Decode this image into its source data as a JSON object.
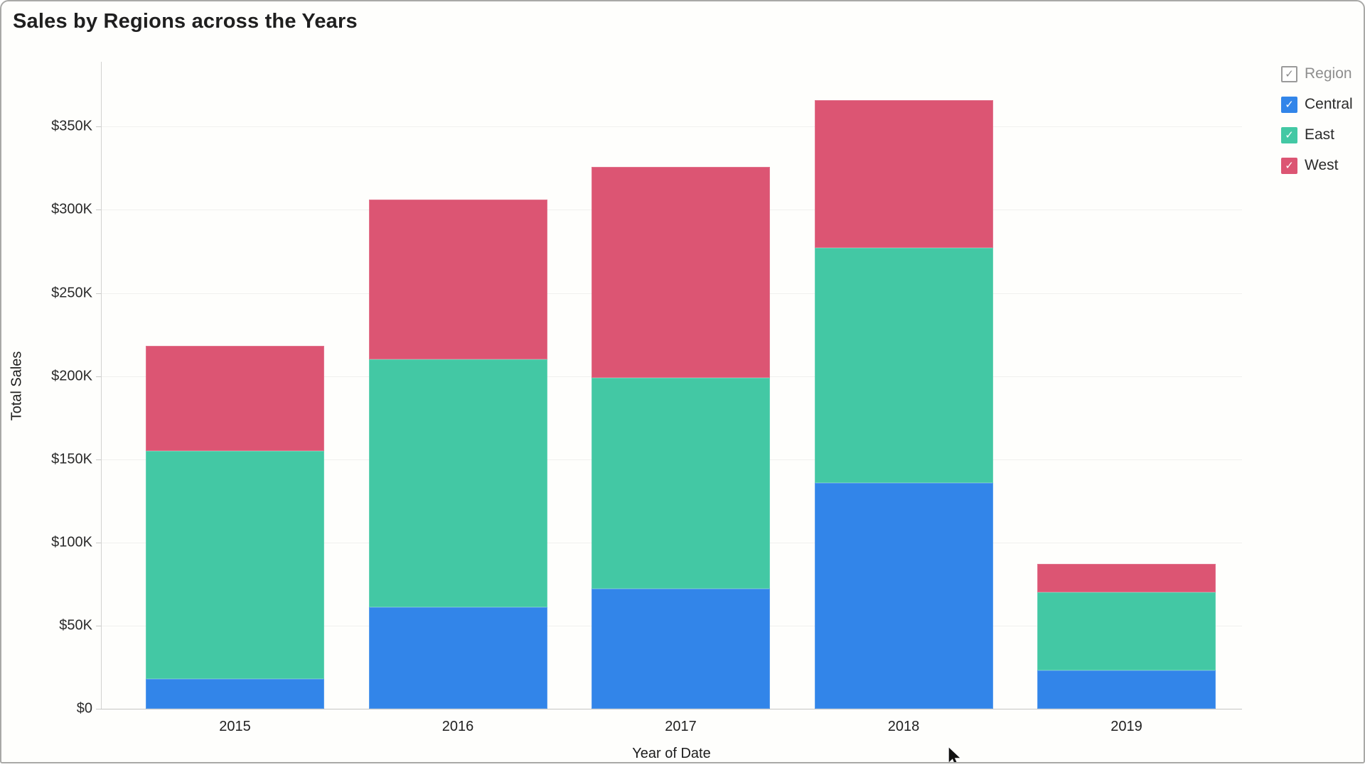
{
  "header": {
    "title": "Sales by Regions across the Years"
  },
  "legend": {
    "header": {
      "label": "Region",
      "check_glyph": "✓"
    },
    "items": [
      {
        "label": "Central",
        "color": "#3285e9",
        "checked": true
      },
      {
        "label": "East",
        "color": "#43c8a4",
        "checked": true
      },
      {
        "label": "West",
        "color": "#dc5573",
        "checked": true
      }
    ]
  },
  "chart_data": {
    "type": "bar",
    "stacked": true,
    "title": "Sales by Regions across the Years",
    "xlabel": "Year of Date",
    "ylabel": "Total Sales",
    "categories": [
      "2015",
      "2016",
      "2017",
      "2018",
      "2019"
    ],
    "series": [
      {
        "name": "Central",
        "color": "#3285e9",
        "values": [
          18000,
          61000,
          72000,
          136000,
          23000
        ]
      },
      {
        "name": "East",
        "color": "#43c8a4",
        "values": [
          137000,
          149000,
          127000,
          141000,
          47000
        ]
      },
      {
        "name": "West",
        "color": "#dc5573",
        "values": [
          63000,
          96000,
          127000,
          89000,
          17000
        ]
      }
    ],
    "totals": [
      218000,
      306000,
      326000,
      366000,
      87000
    ],
    "ylim": [
      0,
      389000
    ],
    "yticks": [
      {
        "value": 0,
        "label": "$0"
      },
      {
        "value": 50000,
        "label": "$50K"
      },
      {
        "value": 100000,
        "label": "$100K"
      },
      {
        "value": 150000,
        "label": "$150K"
      },
      {
        "value": 200000,
        "label": "$200K"
      },
      {
        "value": 250000,
        "label": "$250K"
      },
      {
        "value": 300000,
        "label": "$300K"
      },
      {
        "value": 350000,
        "label": "$350K"
      }
    ],
    "grid": true,
    "legend_position": "top-right"
  }
}
